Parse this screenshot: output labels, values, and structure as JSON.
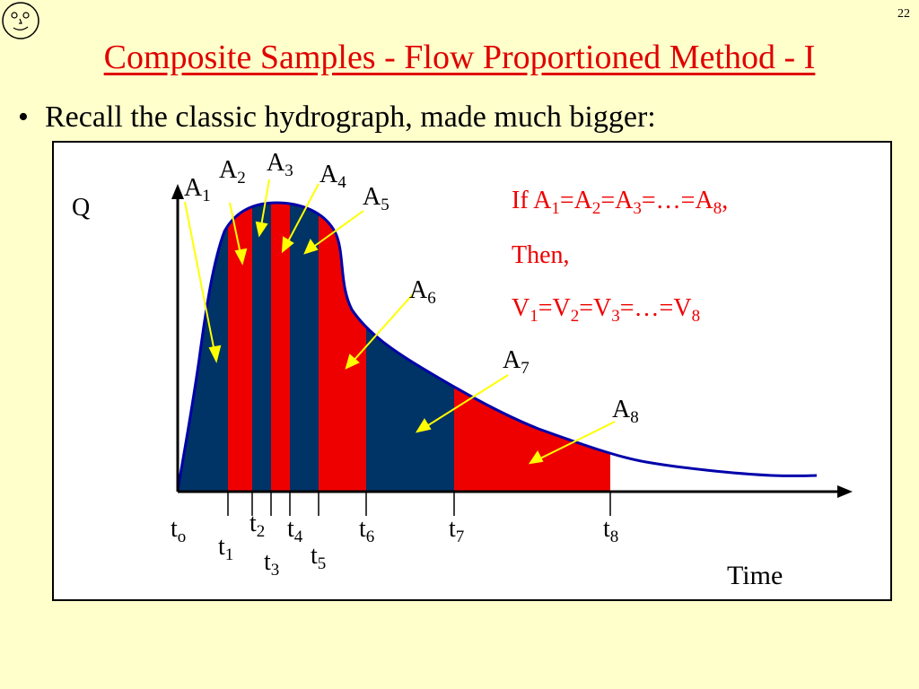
{
  "slide": {
    "number": "22",
    "title": "Composite Samples - Flow Proportioned Method - I",
    "bullet": "Recall the classic hydrograph, made much bigger:"
  },
  "diagram": {
    "y_axis_label": "Q",
    "x_axis_label": "Time",
    "area_labels": [
      {
        "base": "A",
        "sub": "1"
      },
      {
        "base": "A",
        "sub": "2"
      },
      {
        "base": "A",
        "sub": "3"
      },
      {
        "base": "A",
        "sub": "4"
      },
      {
        "base": "A",
        "sub": "5"
      },
      {
        "base": "A",
        "sub": "6"
      },
      {
        "base": "A",
        "sub": "7"
      },
      {
        "base": "A",
        "sub": "8"
      }
    ],
    "time_labels": [
      {
        "base": "t",
        "sub": "o"
      },
      {
        "base": "t",
        "sub": "1"
      },
      {
        "base": "t",
        "sub": "2"
      },
      {
        "base": "t",
        "sub": "3"
      },
      {
        "base": "t",
        "sub": "4"
      },
      {
        "base": "t",
        "sub": "5"
      },
      {
        "base": "t",
        "sub": "6"
      },
      {
        "base": "t",
        "sub": "7"
      },
      {
        "base": "t",
        "sub": "8"
      }
    ],
    "statement": {
      "line1": {
        "if": "If ",
        "a1": "A",
        "s1": "1",
        "eq1": "=A",
        "s2": "2",
        "eq2": "=A",
        "s3": "3",
        "mid": "=…=A",
        "s8": "8",
        "end": ","
      },
      "line2": "Then,",
      "line3": {
        "v1": "V",
        "s1": "1",
        "eq1": "=V",
        "s2": "2",
        "eq2": "=V",
        "s3": "3",
        "mid": "=…=V",
        "s8": "8"
      }
    },
    "colors": {
      "red_band": "#ee0000",
      "blue_band": "#003366",
      "curve": "#0000aa",
      "arrow": "#ffff00"
    }
  }
}
